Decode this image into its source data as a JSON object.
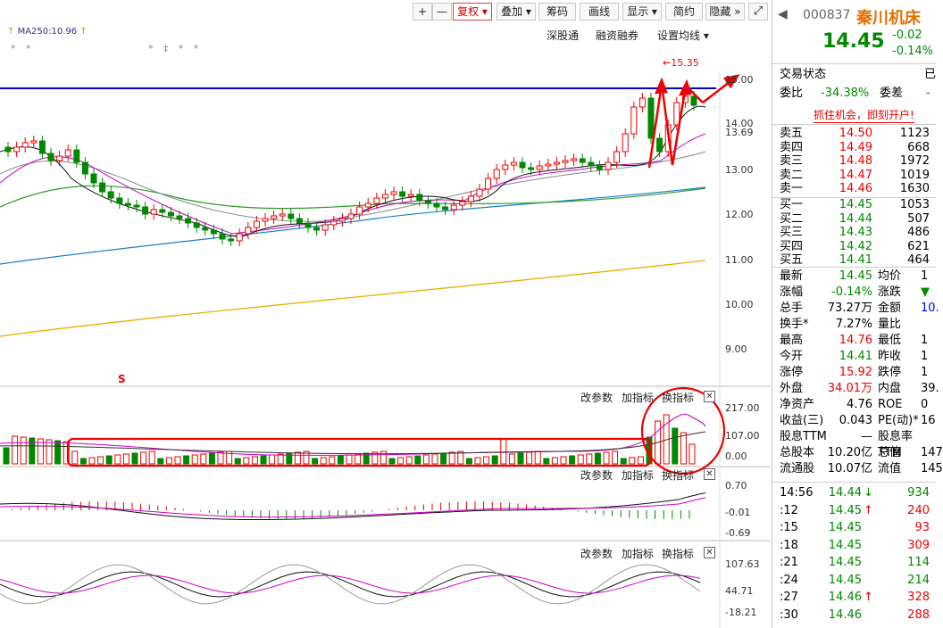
{
  "toolbar": {
    "buttons": [
      "+",
      "—",
      "复权",
      "叠加",
      "筹码",
      "画线",
      "显示",
      "简约",
      "隐藏"
    ],
    "fullscreen_icon": "expand-icon"
  },
  "subbar": {
    "links": [
      "深股通",
      "融资融券",
      "设置均线"
    ],
    "ma_label": "MA250:10.96"
  },
  "price_axis": [
    "15.00",
    "14.00",
    "13.69",
    "13.00",
    "12.00",
    "11.00",
    "10.00",
    "9.00"
  ],
  "high_marker": "15.35",
  "volume_axis": [
    "217.00",
    "107.00",
    "0.00"
  ],
  "macd_axis": [
    "0.70",
    "-0.01",
    "-0.69"
  ],
  "kdj_axis": [
    "107.63",
    "44.71",
    "-18.21"
  ],
  "indicator_buttons": [
    "改参数",
    "加指标",
    "换指标"
  ],
  "signal_mark": "S",
  "quote": {
    "code": "000837",
    "name": "秦川机床",
    "price": "14.45",
    "change": "-0.02",
    "change_pct": "-0.14%",
    "trade_status_label": "交易状态",
    "trade_status_value": "已",
    "wb_label": "委比",
    "wb_value": "-34.38%",
    "wc_label": "委差",
    "wc_value": "-",
    "promo": "抓住机会，即刻开户!"
  },
  "asks": [
    {
      "label": "卖五",
      "price": "14.50",
      "vol": "1123"
    },
    {
      "label": "卖四",
      "price": "14.49",
      "vol": "668"
    },
    {
      "label": "卖三",
      "price": "14.48",
      "vol": "1972"
    },
    {
      "label": "卖二",
      "price": "14.47",
      "vol": "1019"
    },
    {
      "label": "卖一",
      "price": "14.46",
      "vol": "1630"
    }
  ],
  "bids": [
    {
      "label": "买一",
      "price": "14.45",
      "vol": "1053"
    },
    {
      "label": "买二",
      "price": "14.44",
      "vol": "507"
    },
    {
      "label": "买三",
      "price": "14.43",
      "vol": "486"
    },
    {
      "label": "买四",
      "price": "14.42",
      "vol": "621"
    },
    {
      "label": "买五",
      "price": "14.41",
      "vol": "464"
    }
  ],
  "stats": [
    {
      "l1": "最新",
      "v1": "14.45",
      "c1": "green",
      "l2": "均价",
      "v2": "1"
    },
    {
      "l1": "涨幅",
      "v1": "-0.14%",
      "c1": "green",
      "l2": "涨跌",
      "v2": "▼"
    },
    {
      "l1": "总手",
      "v1": "73.27万",
      "c1": "",
      "l2": "金额",
      "v2": "10."
    },
    {
      "l1": "换手*",
      "v1": "7.27%",
      "c1": "",
      "l2": "量比",
      "v2": ""
    },
    {
      "l1": "最高",
      "v1": "14.76",
      "c1": "red",
      "l2": "最低",
      "v2": "1"
    },
    {
      "l1": "今开",
      "v1": "14.41",
      "c1": "green",
      "l2": "昨收",
      "v2": "1"
    },
    {
      "l1": "涨停",
      "v1": "15.92",
      "c1": "red",
      "l2": "跌停",
      "v2": "1"
    },
    {
      "l1": "外盘",
      "v1": "34.01万",
      "c1": "red",
      "l2": "内盘",
      "v2": "39."
    },
    {
      "l1": "净资产",
      "v1": "4.76",
      "c1": "",
      "l2": "ROE",
      "v2": "0"
    },
    {
      "l1": "收益(三)",
      "v1": "0.043",
      "c1": "",
      "l2": "PE(动)*",
      "v2": "16"
    },
    {
      "l1": "股息TTM",
      "v1": "—",
      "c1": "",
      "l2": "股息率TTM",
      "v2": ""
    },
    {
      "l1": "总股本",
      "v1": "10.20亿",
      "c1": "",
      "l2": "总值",
      "v2": "147"
    },
    {
      "l1": "流通股",
      "v1": "10.07亿",
      "c1": "",
      "l2": "流值",
      "v2": "145"
    }
  ],
  "ticks": [
    {
      "time": "14:56",
      "price": "14.44",
      "arrow": "↓",
      "vol": "934"
    },
    {
      "time": ":12",
      "price": "14.45",
      "arrow": "↑",
      "vol": "240"
    },
    {
      "time": ":15",
      "price": "14.45",
      "arrow": "",
      "vol": "93"
    },
    {
      "time": ":18",
      "price": "14.45",
      "arrow": "",
      "vol": "309"
    },
    {
      "time": ":21",
      "price": "14.45",
      "arrow": "",
      "vol": "114"
    },
    {
      "time": ":24",
      "price": "14.45",
      "arrow": "",
      "vol": "214"
    },
    {
      "time": ":27",
      "price": "14.46",
      "arrow": "↑",
      "vol": "328"
    },
    {
      "time": ":30",
      "price": "14.46",
      "arrow": "",
      "vol": "288"
    }
  ]
}
